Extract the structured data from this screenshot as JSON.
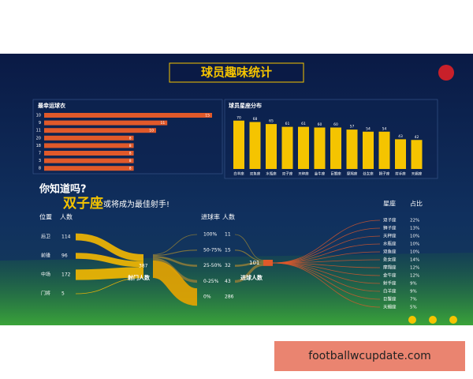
{
  "header": {
    "title": "球员趣味统计"
  },
  "jersey_chart": {
    "type": "bar",
    "title": "最幸运球衣",
    "categories": [
      "10",
      "9",
      "11",
      "20",
      "18",
      "7",
      "3",
      "8"
    ],
    "values": [
      15,
      11,
      10,
      8,
      8,
      8,
      8,
      8
    ],
    "xlim": [
      0,
      15
    ],
    "color": "#e0592a"
  },
  "sign_chart": {
    "type": "bar",
    "title": "球员星座分布",
    "categories": [
      "白羊座",
      "双鱼座",
      "水瓶座",
      "双子座",
      "天秤座",
      "金牛座",
      "巨蟹座",
      "摩羯座",
      "处女座",
      "狮子座",
      "射手座",
      "天蝎座"
    ],
    "values": [
      70,
      68,
      65,
      61,
      61,
      60,
      60,
      57,
      54,
      54,
      43,
      42
    ],
    "ylim": [
      0,
      80
    ],
    "color": "#f5c400"
  },
  "teaser": {
    "question": "你知道吗?",
    "highlight": "双子座",
    "text": "或将成为最佳射手!"
  },
  "positions": {
    "header_label": "位置",
    "header_count": "人数",
    "items": [
      {
        "label": "后卫",
        "count": 114
      },
      {
        "label": "前锋",
        "count": 96
      },
      {
        "label": "中场",
        "count": 172
      },
      {
        "label": "门将",
        "count": 5
      }
    ]
  },
  "shooters": {
    "count": 387,
    "label": "射门人数"
  },
  "goal_rates": {
    "header_label": "进球率",
    "header_count": "人数",
    "items": [
      {
        "label": "100%",
        "count": 11
      },
      {
        "label": "50-75%",
        "count": 15
      },
      {
        "label": "25-50%",
        "count": 32
      },
      {
        "label": "0-25%",
        "count": 43
      },
      {
        "label": "0%",
        "count": 286
      }
    ]
  },
  "scorers": {
    "count": 101,
    "label": "进球人数"
  },
  "sign_share": {
    "header_label": "星座",
    "header_share": "占比",
    "items": [
      {
        "sign": "双子座",
        "share": "22%"
      },
      {
        "sign": "狮子座",
        "share": "13%"
      },
      {
        "sign": "天秤座",
        "share": "10%"
      },
      {
        "sign": "水瓶座",
        "share": "10%"
      },
      {
        "sign": "双鱼座",
        "share": "10%"
      },
      {
        "sign": "处女座",
        "share": "14%"
      },
      {
        "sign": "摩羯座",
        "share": "12%"
      },
      {
        "sign": "金牛座",
        "share": "12%"
      },
      {
        "sign": "射手座",
        "share": "9%"
      },
      {
        "sign": "白羊座",
        "share": "9%"
      },
      {
        "sign": "巨蟹座",
        "share": "7%"
      },
      {
        "sign": "天蝎座",
        "share": "5%"
      }
    ]
  },
  "watermark": "footballwcupdate.com"
}
